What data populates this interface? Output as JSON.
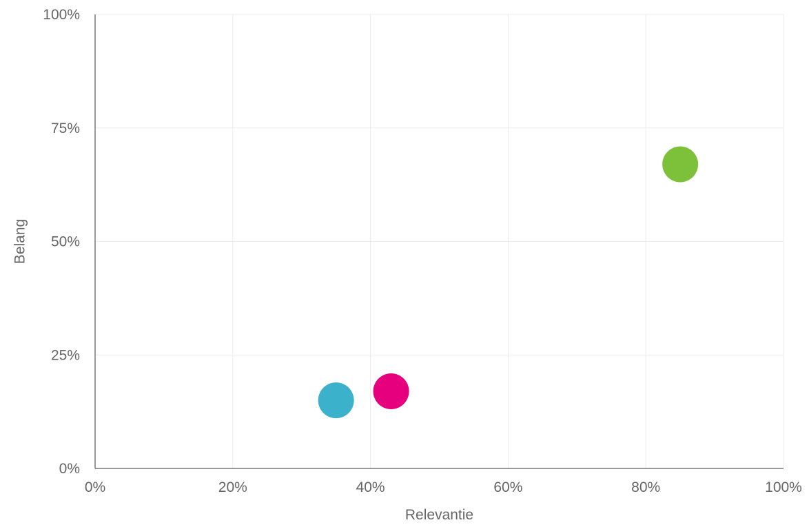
{
  "chart_data": {
    "type": "scatter",
    "xlabel": "Relevantie",
    "ylabel": "Belang",
    "xlim": [
      0,
      100
    ],
    "ylim": [
      0,
      100
    ],
    "x_ticks": [
      0,
      20,
      40,
      60,
      80,
      100
    ],
    "y_ticks": [
      0,
      25,
      50,
      75,
      100
    ],
    "x_tick_labels": [
      "0%",
      "20%",
      "40%",
      "60%",
      "80%",
      "100%"
    ],
    "y_tick_labels": [
      "0%",
      "25%",
      "50%",
      "75%",
      "100%"
    ],
    "grid": true,
    "legend": "none",
    "points": [
      {
        "x": 35,
        "y": 15,
        "color": "#3CB1CC"
      },
      {
        "x": 43,
        "y": 17,
        "color": "#E6007E"
      },
      {
        "x": 85,
        "y": 67,
        "color": "#7DC13B"
      }
    ]
  }
}
